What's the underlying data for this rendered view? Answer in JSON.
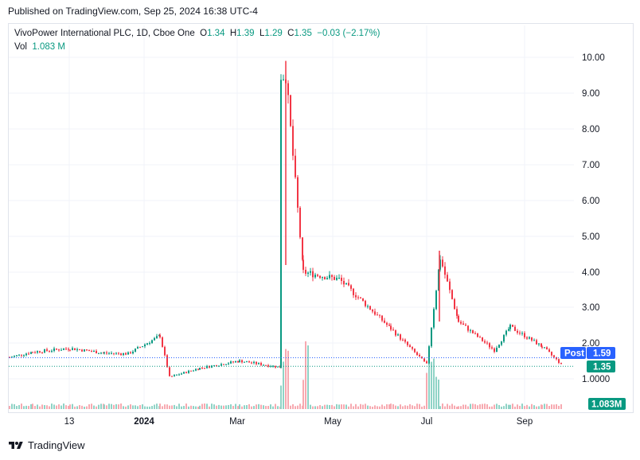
{
  "header": {
    "published": "Published on TradingView.com, Sep 25, 2024 16:38 UTC-4"
  },
  "legend": {
    "symbol": "VivoPower International PLC, 1D, Cboe One",
    "o_label": "O",
    "o_value": "1.34",
    "h_label": "H",
    "h_value": "1.39",
    "l_label": "L",
    "l_value": "1.29",
    "c_label": "C",
    "c_value": "1.35",
    "change": "−0.03 (−2.17%)",
    "vol_label": "Vol",
    "vol_value": "1.083 M"
  },
  "badges": {
    "post_label": "Post",
    "post_value": "1.59",
    "last_value": "1.35",
    "vol_value": "1.083M"
  },
  "footer": {
    "brand": "TradingView"
  },
  "colors": {
    "up": "#089981",
    "down": "#f23645",
    "post": "#2962ff",
    "volume_up": "#8fd3c6",
    "volume_down": "#f7a9b0"
  },
  "chart_data": {
    "type": "candlestick",
    "title": "VivoPower International PLC, 1D, Cboe One",
    "y_scale": "log",
    "ylim": [
      0.95,
      10.5
    ],
    "y_ticks": [
      "10.00",
      "9.00",
      "8.00",
      "7.00",
      "6.00",
      "5.00",
      "4.00",
      "3.00",
      "2.00",
      "1.0000"
    ],
    "x_ticks": [
      "13",
      "2024",
      "Mar",
      "May",
      "Jul",
      "Sep"
    ],
    "last_price": 1.35,
    "post_market_price": 1.59,
    "ohlc_last": {
      "open": 1.34,
      "high": 1.39,
      "low": 1.29,
      "close": 1.35
    },
    "volume_last": "1.083M",
    "close_series": [
      {
        "period": "Nov 2023 (start)",
        "close": 1.6
      },
      {
        "period": "Nov 2023",
        "close": 1.75
      },
      {
        "period": "Dec 2023 (13)",
        "close": 1.85
      },
      {
        "period": "Dec 2023",
        "close": 1.72
      },
      {
        "period": "Jan 2024 (start)",
        "close": 1.7
      },
      {
        "period": "Jan 2024 (peak)",
        "close": 2.2
      },
      {
        "period": "Jan 2024 (drop)",
        "close": 1.05
      },
      {
        "period": "Feb 2024",
        "close": 1.3
      },
      {
        "period": "Mar 2024",
        "close": 1.5
      },
      {
        "period": "Mar 2024 (late)",
        "close": 1.32
      },
      {
        "period": "Mar 2024 (spike)",
        "close": 9.5
      },
      {
        "period": "Apr 2024",
        "close": 4.0
      },
      {
        "period": "May 2024",
        "close": 3.8
      },
      {
        "period": "Jun 2024",
        "close": 2.4
      },
      {
        "period": "Jun 2024 (late)",
        "close": 1.4
      },
      {
        "period": "Jul 2024 (spike)",
        "close": 4.4
      },
      {
        "period": "Jul 2024",
        "close": 2.6
      },
      {
        "period": "Aug 2024",
        "close": 1.8
      },
      {
        "period": "Aug 2024 (late)",
        "close": 2.45
      },
      {
        "period": "Sep 2024",
        "close": 1.9
      },
      {
        "period": "Sep 2024 (end)",
        "close": 1.35
      }
    ]
  }
}
